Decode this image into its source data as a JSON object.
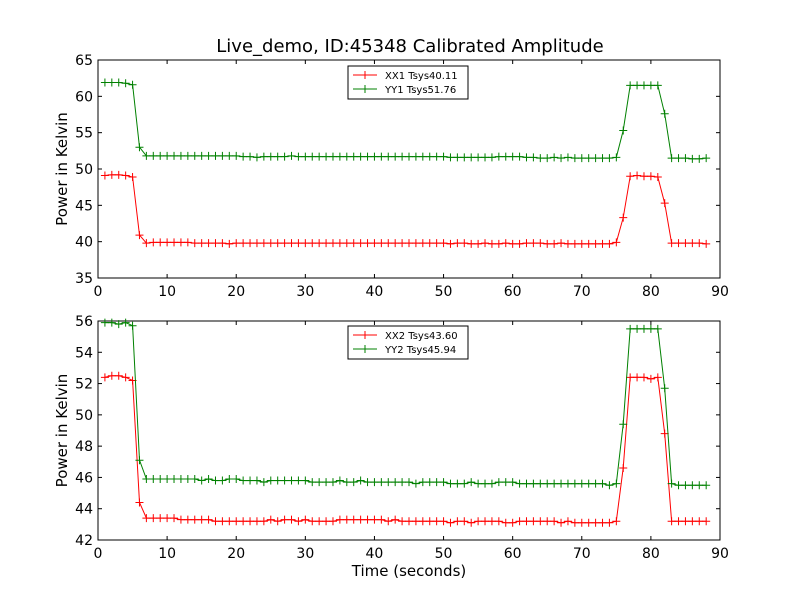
{
  "title": "Live_demo, ID:45348 Calibrated Amplitude",
  "chart_data": [
    {
      "type": "line",
      "xlabel": "",
      "ylabel": "Power in Kelvin",
      "xlim": [
        0,
        90
      ],
      "ylim": [
        35,
        65
      ],
      "xticks": [
        0,
        10,
        20,
        30,
        40,
        50,
        60,
        70,
        80,
        90
      ],
      "yticks": [
        35,
        40,
        45,
        50,
        55,
        60,
        65
      ],
      "grid": false,
      "legend_position": "top-center",
      "series": [
        {
          "name": "XX1 Tsys40.11",
          "color": "#ff0000",
          "x": [
            1,
            2,
            3,
            4,
            5,
            6,
            7,
            8,
            9,
            10,
            11,
            12,
            13,
            14,
            15,
            16,
            17,
            18,
            19,
            20,
            21,
            22,
            23,
            24,
            25,
            26,
            27,
            28,
            29,
            30,
            31,
            32,
            33,
            34,
            35,
            36,
            37,
            38,
            39,
            40,
            41,
            42,
            43,
            44,
            45,
            46,
            47,
            48,
            49,
            50,
            51,
            52,
            53,
            54,
            55,
            56,
            57,
            58,
            59,
            60,
            61,
            62,
            63,
            64,
            65,
            66,
            67,
            68,
            69,
            70,
            71,
            72,
            73,
            74,
            75,
            76,
            77,
            78,
            79,
            80,
            81,
            82,
            83,
            84,
            85,
            86,
            87,
            88
          ],
          "values": [
            49.1,
            49.2,
            49.2,
            49.1,
            48.9,
            40.9,
            39.8,
            39.9,
            39.9,
            39.9,
            39.9,
            39.9,
            39.9,
            39.8,
            39.8,
            39.8,
            39.8,
            39.8,
            39.7,
            39.8,
            39.8,
            39.8,
            39.8,
            39.8,
            39.8,
            39.8,
            39.8,
            39.8,
            39.8,
            39.8,
            39.8,
            39.8,
            39.8,
            39.8,
            39.8,
            39.8,
            39.8,
            39.8,
            39.8,
            39.8,
            39.8,
            39.8,
            39.8,
            39.8,
            39.8,
            39.8,
            39.8,
            39.8,
            39.8,
            39.8,
            39.7,
            39.8,
            39.8,
            39.7,
            39.7,
            39.8,
            39.7,
            39.7,
            39.8,
            39.7,
            39.7,
            39.8,
            39.8,
            39.8,
            39.7,
            39.7,
            39.8,
            39.7,
            39.7,
            39.7,
            39.7,
            39.7,
            39.7,
            39.7,
            39.9,
            43.3,
            49.0,
            49.1,
            49.0,
            49.0,
            48.9,
            45.3,
            39.8,
            39.8,
            39.8,
            39.8,
            39.8,
            39.7
          ]
        },
        {
          "name": "YY1 Tsys51.76",
          "color": "#008000",
          "x": [
            1,
            2,
            3,
            4,
            5,
            6,
            7,
            8,
            9,
            10,
            11,
            12,
            13,
            14,
            15,
            16,
            17,
            18,
            19,
            20,
            21,
            22,
            23,
            24,
            25,
            26,
            27,
            28,
            29,
            30,
            31,
            32,
            33,
            34,
            35,
            36,
            37,
            38,
            39,
            40,
            41,
            42,
            43,
            44,
            45,
            46,
            47,
            48,
            49,
            50,
            51,
            52,
            53,
            54,
            55,
            56,
            57,
            58,
            59,
            60,
            61,
            62,
            63,
            64,
            65,
            66,
            67,
            68,
            69,
            70,
            71,
            72,
            73,
            74,
            75,
            76,
            77,
            78,
            79,
            80,
            81,
            82,
            83,
            84,
            85,
            86,
            87,
            88
          ],
          "values": [
            61.9,
            61.9,
            61.9,
            61.8,
            61.6,
            53.0,
            51.8,
            51.8,
            51.8,
            51.8,
            51.8,
            51.8,
            51.8,
            51.8,
            51.8,
            51.8,
            51.8,
            51.8,
            51.8,
            51.8,
            51.7,
            51.7,
            51.6,
            51.7,
            51.7,
            51.7,
            51.7,
            51.8,
            51.7,
            51.7,
            51.7,
            51.7,
            51.7,
            51.7,
            51.7,
            51.7,
            51.7,
            51.7,
            51.7,
            51.7,
            51.7,
            51.7,
            51.7,
            51.7,
            51.7,
            51.7,
            51.7,
            51.7,
            51.7,
            51.7,
            51.6,
            51.6,
            51.6,
            51.6,
            51.6,
            51.6,
            51.6,
            51.7,
            51.7,
            51.7,
            51.7,
            51.6,
            51.6,
            51.5,
            51.5,
            51.6,
            51.5,
            51.6,
            51.5,
            51.5,
            51.5,
            51.5,
            51.5,
            51.5,
            51.6,
            55.3,
            61.5,
            61.5,
            61.5,
            61.5,
            61.5,
            57.6,
            51.5,
            51.5,
            51.5,
            51.4,
            51.4,
            51.5
          ]
        }
      ]
    },
    {
      "type": "line",
      "xlabel": "Time (seconds)",
      "ylabel": "Power in Kelvin",
      "xlim": [
        0,
        90
      ],
      "ylim": [
        42,
        56
      ],
      "xticks": [
        0,
        10,
        20,
        30,
        40,
        50,
        60,
        70,
        80,
        90
      ],
      "yticks": [
        42,
        44,
        46,
        48,
        50,
        52,
        54,
        56
      ],
      "grid": false,
      "legend_position": "top-center",
      "series": [
        {
          "name": "XX2 Tsys43.60",
          "color": "#ff0000",
          "x": [
            1,
            2,
            3,
            4,
            5,
            6,
            7,
            8,
            9,
            10,
            11,
            12,
            13,
            14,
            15,
            16,
            17,
            18,
            19,
            20,
            21,
            22,
            23,
            24,
            25,
            26,
            27,
            28,
            29,
            30,
            31,
            32,
            33,
            34,
            35,
            36,
            37,
            38,
            39,
            40,
            41,
            42,
            43,
            44,
            45,
            46,
            47,
            48,
            49,
            50,
            51,
            52,
            53,
            54,
            55,
            56,
            57,
            58,
            59,
            60,
            61,
            62,
            63,
            64,
            65,
            66,
            67,
            68,
            69,
            70,
            71,
            72,
            73,
            74,
            75,
            76,
            77,
            78,
            79,
            80,
            81,
            82,
            83,
            84,
            85,
            86,
            87,
            88
          ],
          "values": [
            52.4,
            52.5,
            52.5,
            52.4,
            52.2,
            44.4,
            43.4,
            43.4,
            43.4,
            43.4,
            43.4,
            43.3,
            43.3,
            43.3,
            43.3,
            43.3,
            43.2,
            43.2,
            43.2,
            43.2,
            43.2,
            43.2,
            43.2,
            43.2,
            43.3,
            43.2,
            43.3,
            43.3,
            43.2,
            43.3,
            43.2,
            43.2,
            43.2,
            43.2,
            43.3,
            43.3,
            43.3,
            43.3,
            43.3,
            43.3,
            43.3,
            43.2,
            43.3,
            43.2,
            43.2,
            43.2,
            43.2,
            43.2,
            43.2,
            43.2,
            43.1,
            43.2,
            43.2,
            43.1,
            43.2,
            43.2,
            43.2,
            43.2,
            43.1,
            43.1,
            43.2,
            43.2,
            43.2,
            43.2,
            43.2,
            43.2,
            43.1,
            43.2,
            43.1,
            43.1,
            43.1,
            43.1,
            43.1,
            43.1,
            43.2,
            46.6,
            52.4,
            52.4,
            52.4,
            52.3,
            52.4,
            48.8,
            43.2,
            43.2,
            43.2,
            43.2,
            43.2,
            43.2
          ]
        },
        {
          "name": "YY2 Tsys45.94",
          "color": "#008000",
          "x": [
            1,
            2,
            3,
            4,
            5,
            6,
            7,
            8,
            9,
            10,
            11,
            12,
            13,
            14,
            15,
            16,
            17,
            18,
            19,
            20,
            21,
            22,
            23,
            24,
            25,
            26,
            27,
            28,
            29,
            30,
            31,
            32,
            33,
            34,
            35,
            36,
            37,
            38,
            39,
            40,
            41,
            42,
            43,
            44,
            45,
            46,
            47,
            48,
            49,
            50,
            51,
            52,
            53,
            54,
            55,
            56,
            57,
            58,
            59,
            60,
            61,
            62,
            63,
            64,
            65,
            66,
            67,
            68,
            69,
            70,
            71,
            72,
            73,
            74,
            75,
            76,
            77,
            78,
            79,
            80,
            81,
            82,
            83,
            84,
            85,
            86,
            87,
            88
          ],
          "values": [
            55.9,
            55.9,
            55.8,
            55.9,
            55.7,
            47.1,
            45.9,
            45.9,
            45.9,
            45.9,
            45.9,
            45.9,
            45.9,
            45.9,
            45.8,
            45.9,
            45.8,
            45.8,
            45.9,
            45.9,
            45.8,
            45.8,
            45.8,
            45.7,
            45.8,
            45.8,
            45.8,
            45.8,
            45.8,
            45.8,
            45.7,
            45.7,
            45.7,
            45.7,
            45.8,
            45.7,
            45.7,
            45.8,
            45.7,
            45.7,
            45.7,
            45.7,
            45.7,
            45.7,
            45.7,
            45.6,
            45.7,
            45.7,
            45.7,
            45.7,
            45.6,
            45.6,
            45.6,
            45.7,
            45.6,
            45.6,
            45.6,
            45.7,
            45.7,
            45.7,
            45.6,
            45.6,
            45.6,
            45.6,
            45.6,
            45.6,
            45.6,
            45.6,
            45.6,
            45.6,
            45.6,
            45.6,
            45.6,
            45.5,
            45.6,
            49.4,
            55.5,
            55.5,
            55.5,
            55.5,
            55.5,
            51.7,
            45.6,
            45.5,
            45.5,
            45.5,
            45.5,
            45.5
          ]
        }
      ]
    }
  ]
}
